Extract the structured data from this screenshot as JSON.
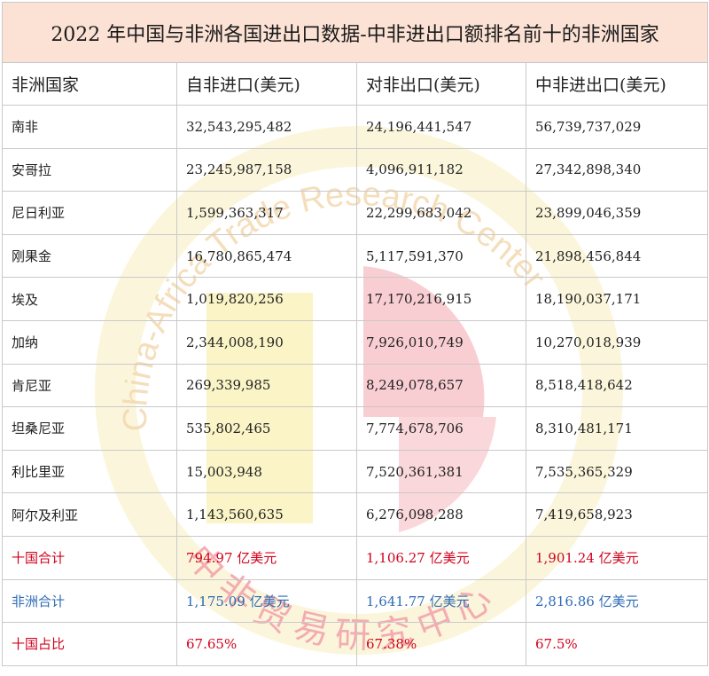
{
  "title": "2022 年中国与非洲各国进出口数据-中非进出口额排名前十的非洲国家",
  "columns": [
    "非洲国家",
    "自非进口(美元)",
    "对非出口(美元)",
    "中非进出口(美元)"
  ],
  "rows": [
    {
      "country": "南非",
      "import": "32,543,295,482",
      "export": "24,196,441,547",
      "total": "56,739,737,029"
    },
    {
      "country": "安哥拉",
      "import": "23,245,987,158",
      "export": "4,096,911,182",
      "total": "27,342,898,340"
    },
    {
      "country": "尼日利亚",
      "import": "1,599,363,317",
      "export": "22,299,683,042",
      "total": "23,899,046,359"
    },
    {
      "country": "刚果金",
      "import": "16,780,865,474",
      "export": "5,117,591,370",
      "total": "21,898,456,844"
    },
    {
      "country": "埃及",
      "import": "1,019,820,256",
      "export": "17,170,216,915",
      "total": "18,190,037,171"
    },
    {
      "country": "加纳",
      "import": "2,344,008,190",
      "export": "7,926,010,749",
      "total": "10,270,018,939"
    },
    {
      "country": "肯尼亚",
      "import": "269,339,985",
      "export": "8,249,078,657",
      "total": "8,518,418,642"
    },
    {
      "country": "坦桑尼亚",
      "import": "535,802,465",
      "export": "7,774,678,706",
      "total": "8,310,481,171"
    },
    {
      "country": "利比里亚",
      "import": "15,003,948",
      "export": "7,520,361,381",
      "total": "7,535,365,329"
    },
    {
      "country": "阿尔及利亚",
      "import": "1,143,560,635",
      "export": "6,276,098,288",
      "total": "7,419,658,923"
    }
  ],
  "summary": {
    "china_total": {
      "label": "十国合计",
      "import": "794.97 亿美元",
      "export": "1,106.27 亿美元",
      "total": "1,901.24 亿美元"
    },
    "africa_total": {
      "label": "非洲合计",
      "import": "1,175.09 亿美元",
      "export": "1,641.77 亿美元",
      "total": "2,816.86 亿美元"
    },
    "share": {
      "label": "十国占比",
      "import": "67.65%",
      "export": "67.38%",
      "total": "67.5%"
    }
  },
  "watermark": {
    "text_en": "China-Africa Trade Research Center",
    "text_cn": "中非贸易研究中心"
  },
  "colors": {
    "title_bg": "#fbe2d5",
    "red": "#d0021b",
    "blue": "#2d6bb5",
    "watermark_yellow": "#f7eca0",
    "watermark_red": "#f4a6ad"
  }
}
